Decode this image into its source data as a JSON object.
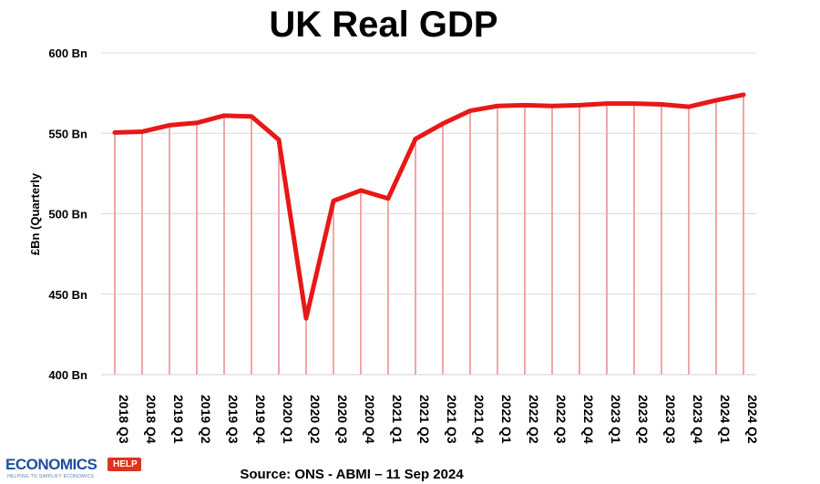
{
  "chart_data": {
    "type": "line",
    "title": "UK Real GDP",
    "ylabel": "£Bn (Quarterly",
    "xlabel": "",
    "ylim": [
      400,
      600
    ],
    "yticks": [
      400,
      450,
      500,
      550,
      600
    ],
    "ytick_labels": [
      "400 Bn",
      "450 Bn",
      "500 Bn",
      "550 Bn",
      "600 Bn"
    ],
    "grid": "horizontal",
    "categories": [
      "2018 Q3",
      "2018 Q4",
      "2019 Q1",
      "2019 Q2",
      "2019 Q3",
      "2019 Q4",
      "2020 Q1",
      "2020 Q2",
      "2020 Q3",
      "2020 Q4",
      "2021 Q1",
      "2021 Q2",
      "2021 Q3",
      "2021 Q4",
      "2022 Q1",
      "2022 Q2",
      "2022 Q3",
      "2022 Q4",
      "2023 Q1",
      "2023 Q2",
      "2023 Q3",
      "2023 Q4",
      "2024 Q1",
      "2024 Q2"
    ],
    "series": [
      {
        "values": [
          550.5,
          551.0,
          555.0,
          556.5,
          561.0,
          560.5,
          546.0,
          435.0,
          508.0,
          514.5,
          509.5,
          546.5,
          556.0,
          564.0,
          567.0,
          567.5,
          567.0,
          567.5,
          568.5,
          568.5,
          568.0,
          566.5,
          570.5,
          574.0
        ],
        "color": "#e81818",
        "drop_line_color": "#f0a6a6"
      }
    ],
    "source": "Source: ONS - ABMI – 11 Sep 2024"
  },
  "logo": {
    "main": "ECONOMICS",
    "badge": "HELP",
    "tagline": "HELPING TO SIMPLIFY ECONOMICS"
  }
}
